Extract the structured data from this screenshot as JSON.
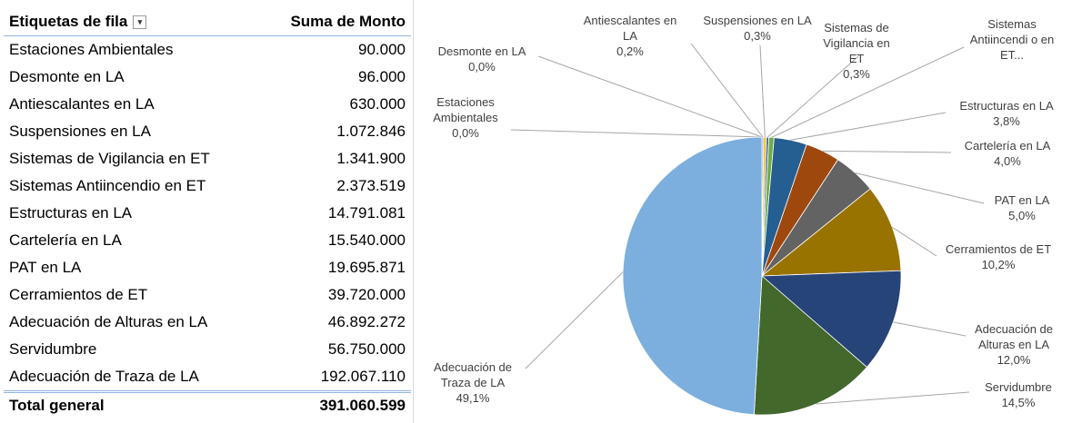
{
  "table": {
    "header": [
      "Etiquetas de fila",
      "Suma de Monto"
    ],
    "rows": [
      [
        "Estaciones Ambientales",
        "90.000"
      ],
      [
        "Desmonte en LA",
        "96.000"
      ],
      [
        "Antiescalantes en LA",
        "630.000"
      ],
      [
        "Suspensiones en LA",
        "1.072.846"
      ],
      [
        "Sistemas de Vigilancia en ET",
        "1.341.900"
      ],
      [
        "Sistemas Antiincendio en ET",
        "2.373.519"
      ],
      [
        "Estructuras en LA",
        "14.791.081"
      ],
      [
        "Cartelería en LA",
        "15.540.000"
      ],
      [
        "PAT en LA",
        "19.695.871"
      ],
      [
        "Cerramientos de ET",
        "39.720.000"
      ],
      [
        "Adecuación de Alturas en LA",
        "46.892.272"
      ],
      [
        "Servidumbre",
        "56.750.000"
      ],
      [
        "Adecuación de Traza de LA",
        "192.067.110"
      ]
    ],
    "total": [
      "Total general",
      "391.060.599"
    ]
  },
  "chart_data": {
    "type": "pie",
    "categories": [
      "Estaciones Ambientales",
      "Desmonte en LA",
      "Antiescalantes en LA",
      "Suspensiones en LA",
      "Sistemas de Vigilancia en ET",
      "Sistemas Antiincendi o en ET...",
      "Estructuras en LA",
      "Cartelería en LA",
      "PAT en LA",
      "Cerramientos de ET",
      "Adecuación de Alturas en LA",
      "Servidumbre",
      "Adecuación de Traza de LA"
    ],
    "values": [
      0.0,
      0.0,
      0.2,
      0.3,
      0.3,
      0.6,
      3.8,
      4.0,
      5.0,
      10.2,
      12.0,
      14.5,
      49.1
    ],
    "value_labels": [
      "0,0%",
      "0,0%",
      "0,2%",
      "0,3%",
      "0,3%",
      null,
      "3,8%",
      "4,0%",
      "5,0%",
      "10,2%",
      "12,0%",
      "14,5%",
      "49,1%"
    ],
    "colors": [
      "#5B9BD5",
      "#ED7D31",
      "#A5A5A5",
      "#FFC000",
      "#4472C4",
      "#70AD47",
      "#255E91",
      "#9E480E",
      "#636363",
      "#997300",
      "#264478",
      "#43682B",
      "#7CAFDD"
    ]
  }
}
